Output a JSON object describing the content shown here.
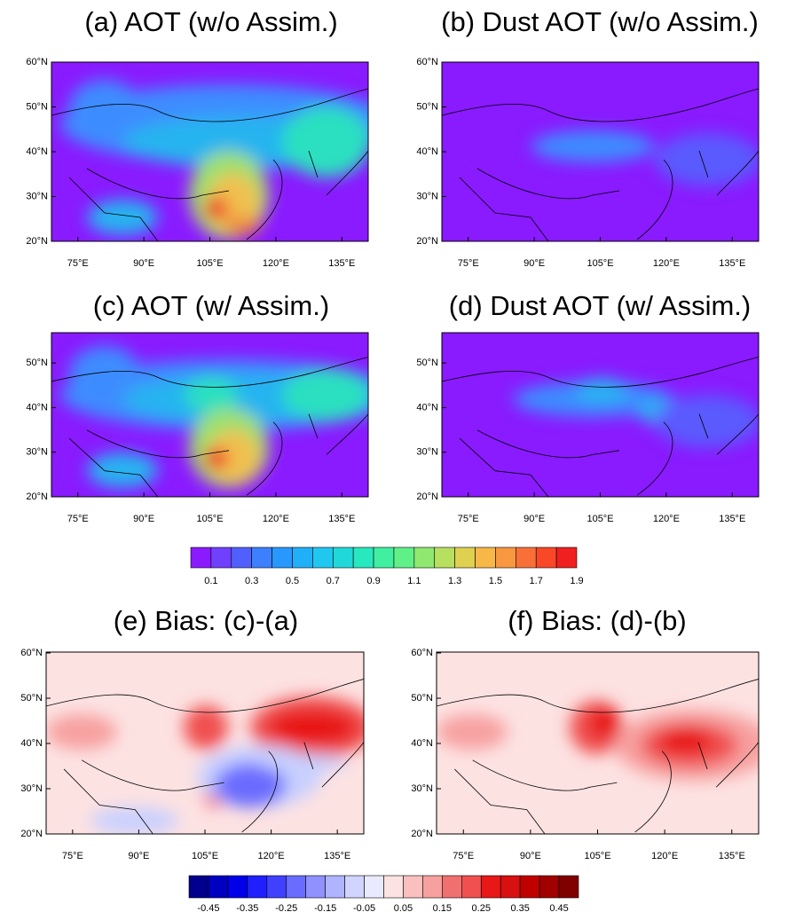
{
  "panels": [
    {
      "title": "(a) AOT (w/o Assim.)",
      "yticks": [
        "60°N",
        "50°N",
        "40°N",
        "30°N",
        "20°N"
      ],
      "xticks": [
        "75°E",
        "90°E",
        "105°E",
        "120°E",
        "135°E"
      ]
    },
    {
      "title": "(b) Dust AOT (w/o Assim.)",
      "yticks": [
        "60°N",
        "50°N",
        "40°N",
        "30°N",
        "20°N"
      ],
      "xticks": [
        "75°E",
        "90°E",
        "105°E",
        "120°E",
        "135°E"
      ]
    },
    {
      "title": "(c) AOT (w/ Assim.)",
      "yticks": [
        "50°N",
        "40°N",
        "30°N",
        "20°N"
      ],
      "xticks": [
        "75°E",
        "90°E",
        "105°E",
        "120°E",
        "135°E"
      ]
    },
    {
      "title": "(d) Dust AOT (w/ Assim.)",
      "yticks": [
        "50°N",
        "40°N",
        "30°N",
        "20°N"
      ],
      "xticks": [
        "75°E",
        "90°E",
        "105°E",
        "120°E",
        "135°E"
      ]
    },
    {
      "title": "(e) Bias: (c)-(a)",
      "yticks": [
        "60°N",
        "50°N",
        "40°N",
        "30°N",
        "20°N"
      ],
      "xticks": [
        "75°E",
        "90°E",
        "105°E",
        "120°E",
        "135°E"
      ]
    },
    {
      "title": "(f) Bias: (d)-(b)",
      "yticks": [
        "60°N",
        "50°N",
        "40°N",
        "30°N",
        "20°N"
      ],
      "xticks": [
        "75°E",
        "90°E",
        "105°E",
        "120°E",
        "135°E"
      ]
    }
  ],
  "colorbars": [
    {
      "labels": [
        "0.1",
        "0.3",
        "0.5",
        "0.7",
        "0.9",
        "1.1",
        "1.3",
        "1.5",
        "1.7",
        "1.9"
      ]
    },
    {
      "labels": [
        "-0.45",
        "-0.35",
        "-0.25",
        "-0.15",
        "-0.05",
        "0.05",
        "0.15",
        "0.25",
        "0.35",
        "0.45"
      ]
    }
  ]
}
